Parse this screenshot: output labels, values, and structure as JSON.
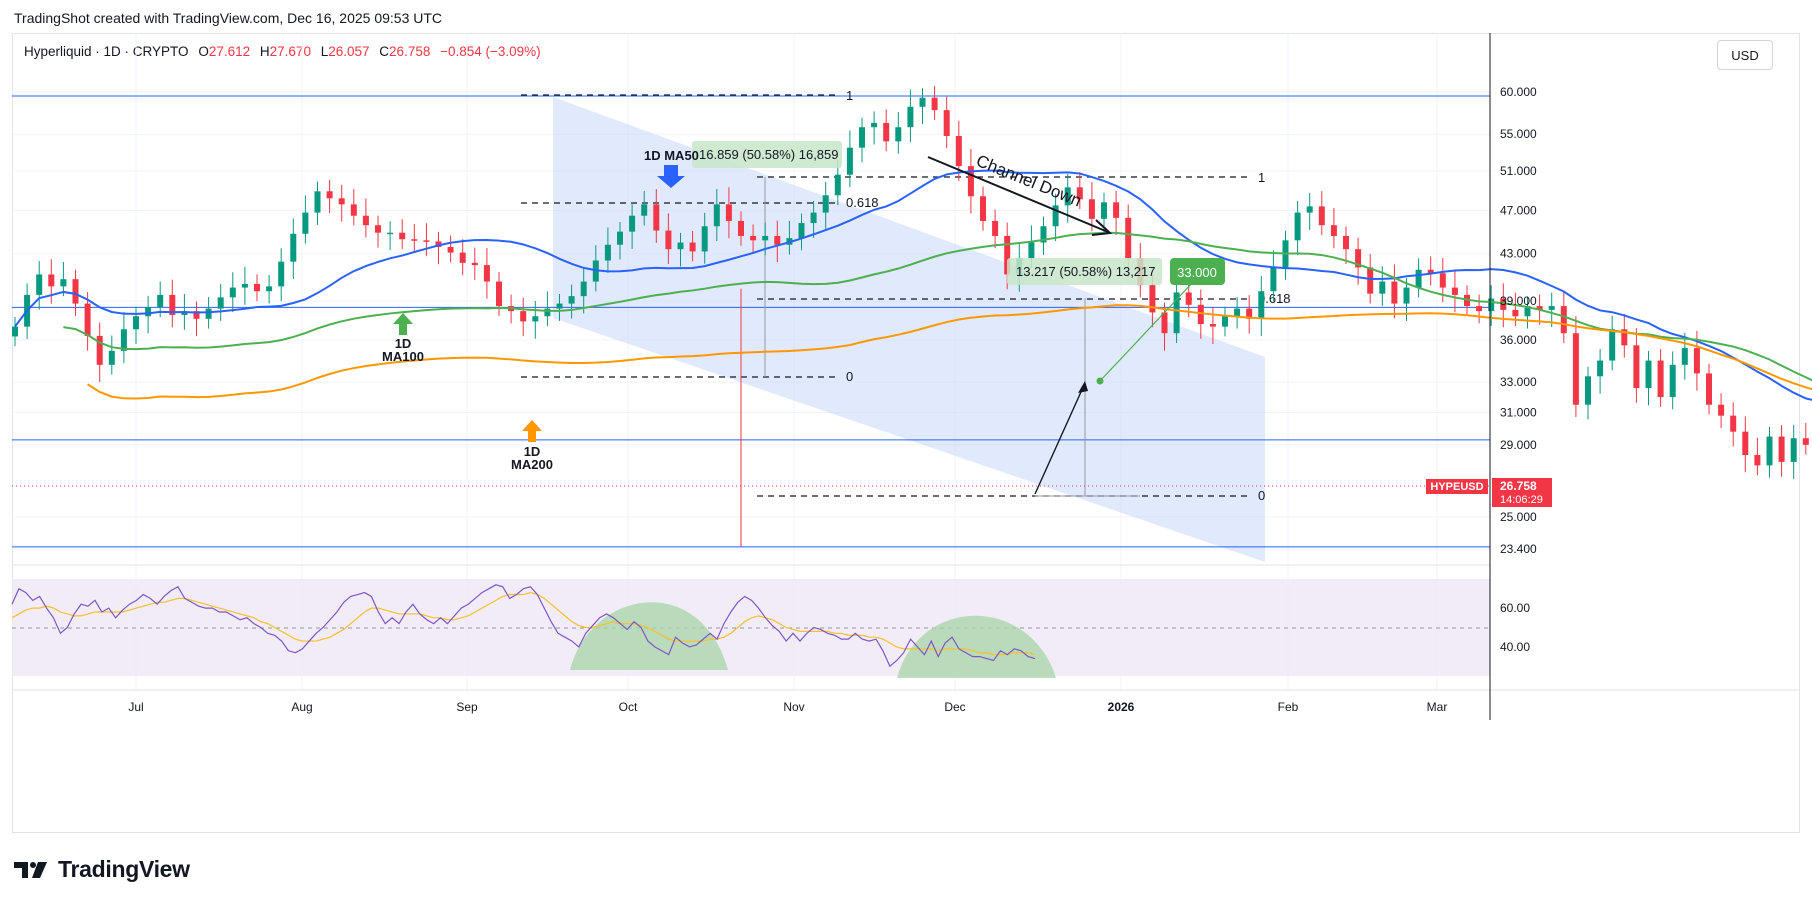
{
  "header": {
    "caption": "TradingShot created with TradingView.com, Dec 16, 2025 09:53 UTC"
  },
  "legend": {
    "symbol": "Hyperliquid · 1D · CRYPTO",
    "o_label": "O",
    "o": "27.612",
    "h_label": "H",
    "h": "27.670",
    "l_label": "L",
    "l": "26.057",
    "c_label": "C",
    "c": "26.758",
    "change": "−0.854 (−3.09%)"
  },
  "toolbar": {
    "currency": "USD"
  },
  "footer": {
    "brand": "TradingView"
  },
  "colors": {
    "up": "#089981",
    "down": "#f23645",
    "ma50": "#2962ff",
    "ma100": "#4caf50",
    "ma200": "#ff9800",
    "channel": "#c9d7fb",
    "rsi": "#7e57c2",
    "rsi_ma": "#fbc02d",
    "hline": "#2962ff",
    "price_tag": "#f23645"
  },
  "chart_data": {
    "type": "candlestick",
    "symbol": "HYPEUSD",
    "timeframe": "1D",
    "x_ticks": [
      "Jul",
      "Aug",
      "Sep",
      "Oct",
      "Nov",
      "Dec",
      "2026",
      "Feb",
      "Mar"
    ],
    "y_ticks": [
      "60.000",
      "55.000",
      "51.000",
      "47.000",
      "43.000",
      "39.000",
      "36.000",
      "33.000",
      "31.000",
      "29.000",
      "25.000",
      "23.400"
    ],
    "ylim": [
      23.4,
      61.5
    ],
    "y_scale": "log",
    "last_price": "26.758",
    "last_price_label": "HYPEUSD",
    "countdown": "14:06:29",
    "horizontal_levels": [
      59.5,
      38.5,
      29.3,
      23.5
    ],
    "ohlc_approx": {
      "start_date": "2025-06-15",
      "closes": [
        37,
        39.5,
        41.2,
        40.2,
        40.8,
        38.8,
        36.3,
        34.2,
        35.2,
        36.8,
        37.8,
        38.5,
        39.5,
        37.9,
        38.2,
        37.6,
        38.4,
        39.3,
        40.1,
        40.4,
        39.8,
        40.2,
        42.3,
        44.8,
        46.8,
        48.9,
        48.2,
        47.6,
        46.5,
        45.6,
        44.9,
        44.9,
        44.3,
        44.2,
        44.1,
        43.6,
        43.1,
        42.2,
        42.0,
        40.6,
        38.6,
        38.2,
        37.4,
        37.8,
        38.4,
        38.8,
        39.4,
        40.6,
        42.4,
        43.8,
        45.0,
        46.5,
        47.6,
        45.1,
        43.4,
        44.0,
        43.2,
        45.5,
        47.6,
        46.0,
        44.6,
        44.2,
        44.6,
        43.8,
        44.4,
        45.8,
        46.8,
        48.5,
        50.6,
        53.5,
        55.8,
        56.3,
        54.2,
        55.8,
        58.2,
        59.3,
        57.8,
        54.8,
        51.5,
        48.4,
        46.0,
        44.6,
        41.2,
        42.6,
        44.0,
        45.5,
        47.5,
        49.3,
        48.1,
        46.2,
        47.8,
        46.3,
        42.6,
        40.3,
        38.1,
        36.5,
        39.7,
        38.7,
        37.2,
        37.0,
        37.8,
        38.4,
        37.6,
        39.8,
        41.8,
        44.2,
        46.8,
        47.4,
        45.6,
        44.6,
        43.4,
        41.8,
        39.6,
        40.6,
        38.8,
        40.1,
        41.6,
        41.3,
        40.1,
        39.5,
        38.6,
        38.2,
        39.2,
        38.3,
        37.8,
        38.6,
        38.3,
        38.6,
        36.5,
        31.5,
        33.4,
        34.5,
        36.8,
        35.6,
        32.6,
        34.5,
        32.0,
        34.2,
        35.4,
        33.6,
        31.5,
        30.8,
        29.8,
        28.4,
        27.8,
        29.5,
        28.0,
        29.4,
        29.0,
        27.6,
        26.76
      ]
    },
    "moving_averages": [
      {
        "name": "MA50",
        "label": "1D MA50"
      },
      {
        "name": "MA100",
        "label_line1": "1D",
        "label_line2": "MA100"
      },
      {
        "name": "MA200",
        "label_line1": "1D",
        "label_line2": "MA200"
      }
    ],
    "annotations": {
      "channel": "Channel Down",
      "measure_1": "16.859 (50.58%) 16,859",
      "measure_2": "13.217 (50.58%) 13,217",
      "target": "33.000",
      "fib_top": "1",
      "fib_mid": "0.618",
      "fib_low": "0",
      "fib2_top": "1",
      "fib2_mid": "0.618",
      "fib2_low": "0"
    },
    "rsi": {
      "y_ticks": [
        "60.00",
        "40.00"
      ],
      "ylim": [
        25,
        75
      ],
      "values": [
        62,
        70,
        68,
        64,
        66,
        60,
        55,
        47,
        50,
        57,
        62,
        61,
        64,
        58,
        60,
        55,
        59,
        62,
        64,
        67,
        65,
        62,
        66,
        69,
        71,
        65,
        63,
        61,
        60,
        60,
        58,
        58,
        56,
        54,
        55,
        52,
        50,
        47,
        46,
        43,
        38,
        37,
        39,
        43,
        47,
        50,
        54,
        58,
        63,
        66,
        67,
        68,
        66,
        58,
        52,
        55,
        52,
        58,
        62,
        57,
        54,
        52,
        55,
        52,
        56,
        60,
        62,
        65,
        68,
        70,
        72,
        71,
        65,
        67,
        70,
        71,
        67,
        60,
        53,
        47,
        45,
        43,
        40,
        47,
        51,
        55,
        57,
        55,
        52,
        49,
        53,
        50,
        43,
        40,
        38,
        36,
        45,
        42,
        40,
        41,
        44,
        47,
        44,
        52,
        58,
        63,
        66,
        64,
        60,
        55,
        51,
        48,
        43,
        47,
        43,
        47,
        50,
        49,
        47,
        46,
        44,
        44,
        47,
        44,
        43,
        44,
        38,
        30,
        33,
        37,
        44,
        40,
        36,
        43,
        35,
        42,
        45,
        39,
        37,
        35,
        35,
        34,
        33,
        38,
        36,
        39,
        38,
        35,
        34
      ],
      "signal": [
        55,
        57,
        59,
        60,
        60,
        61,
        60,
        58,
        57,
        56,
        56,
        57,
        58,
        58,
        58,
        58,
        58,
        59,
        60,
        61,
        62,
        63,
        63,
        64,
        65,
        65,
        64,
        63,
        62,
        61,
        60,
        59,
        58,
        57,
        56,
        55,
        53,
        52,
        50,
        48,
        46,
        44,
        43,
        43,
        43,
        44,
        45,
        47,
        49,
        52,
        55,
        58,
        60,
        60,
        59,
        58,
        57,
        57,
        57,
        57,
        56,
        55,
        55,
        54,
        54,
        55,
        56,
        58,
        60,
        62,
        64,
        66,
        67,
        67,
        67,
        68,
        67,
        65,
        62,
        59,
        56,
        53,
        51,
        50,
        50,
        51,
        52,
        53,
        52,
        52,
        52,
        51,
        50,
        48,
        46,
        44,
        43,
        43,
        43,
        43,
        43,
        44,
        44,
        45,
        47,
        50,
        53,
        55,
        56,
        55,
        54,
        52,
        50,
        49,
        48,
        48,
        48,
        48,
        48,
        47,
        47,
        46,
        46,
        46,
        45,
        45,
        44,
        42,
        40,
        39,
        39,
        39,
        39,
        39,
        38,
        39,
        39,
        39,
        39,
        38,
        37,
        37,
        36,
        36,
        36,
        37,
        37,
        37,
        36
      ]
    }
  }
}
